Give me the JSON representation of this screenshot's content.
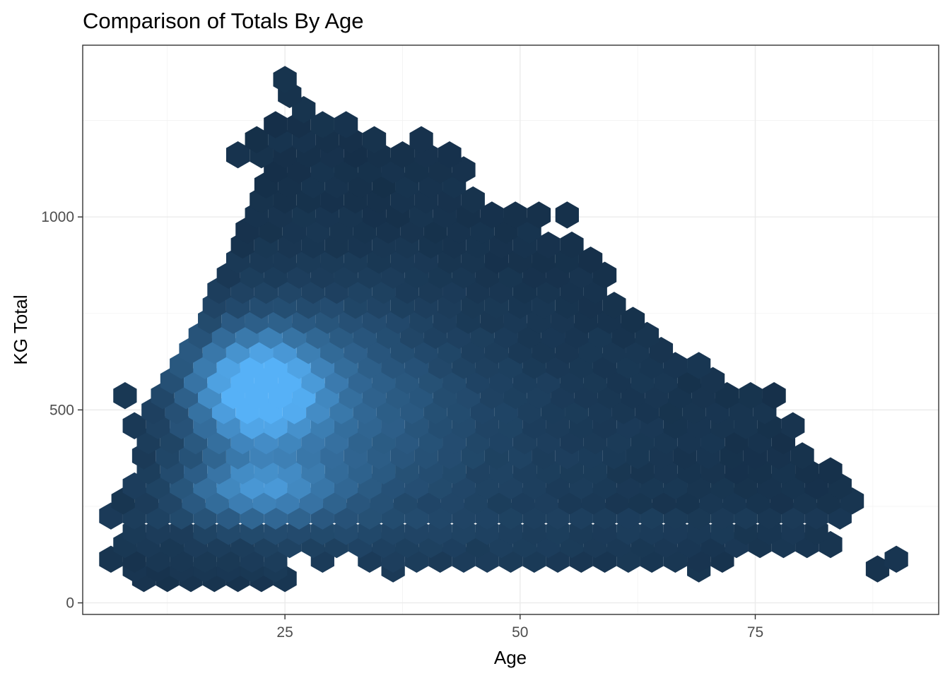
{
  "chart_data": {
    "type": "hexbin",
    "title": "Comparison of Totals By Age",
    "xlabel": "Age",
    "ylabel": "KG Total",
    "xlim": [
      3.5,
      94.5
    ],
    "ylim": [
      -30,
      1445
    ],
    "x_ticks": [
      25,
      50,
      75
    ],
    "y_ticks": [
      0,
      500,
      1000
    ],
    "grid": true,
    "legend": "none",
    "colors": {
      "low": "#132B43",
      "high": "#56B1F7"
    },
    "bin_count_scale": [
      0,
      1
    ],
    "rows": [
      {
        "y": 63,
        "x": [
          10,
          25
        ],
        "base": 0.03
      },
      {
        "y": 88,
        "x": [
          9,
          26
        ],
        "base": 0.04,
        "extra": [
          36.5,
          69,
          88
        ]
      },
      {
        "y": 113,
        "x": [
          6.5,
          72
        ],
        "base": 0.05,
        "holes": [
          27,
          31
        ],
        "extra": [
          90
        ]
      },
      {
        "y": 151,
        "x": [
          8,
          80.5
        ],
        "base": 0.06,
        "extra": [
          83
        ]
      },
      {
        "y": 185,
        "x": [
          9,
          83
        ],
        "base": 0.07
      },
      {
        "y": 225,
        "x": [
          6.5,
          84
        ],
        "base": 0.08
      },
      {
        "y": 264,
        "x": [
          7.8,
          85.5
        ],
        "base": 0.04
      },
      {
        "y": 303,
        "x": [
          9,
          84
        ],
        "base": 0.04
      },
      {
        "y": 342,
        "x": [
          10.5,
          83
        ],
        "base": 0.03
      },
      {
        "y": 381,
        "x": [
          10,
          82
        ],
        "base": 0.03
      },
      {
        "y": 420,
        "x": [
          10.5,
          80
        ],
        "base": 0.03
      },
      {
        "y": 459,
        "x": [
          9,
          80.5
        ],
        "base": 0.03
      },
      {
        "y": 498,
        "x": [
          11,
          78
        ],
        "base": 0.03
      },
      {
        "y": 537,
        "x": [
          12,
          78.5
        ],
        "base": 0.03,
        "extra": [
          8
        ]
      },
      {
        "y": 576,
        "x": [
          13,
          71
        ],
        "base": 0.03
      },
      {
        "y": 615,
        "x": [
          14,
          69
        ],
        "base": 0.03
      },
      {
        "y": 654,
        "x": [
          15,
          66
        ],
        "base": 0.03
      },
      {
        "y": 693,
        "x": [
          16,
          64
        ],
        "base": 0.03
      },
      {
        "y": 732,
        "x": [
          17,
          63
        ],
        "base": 0.03
      },
      {
        "y": 771,
        "x": [
          17.5,
          61
        ],
        "base": 0.03
      },
      {
        "y": 810,
        "x": [
          18,
          60
        ],
        "base": 0.03
      },
      {
        "y": 849,
        "x": [
          19,
          59
        ],
        "base": 0.03
      },
      {
        "y": 888,
        "x": [
          20,
          58
        ],
        "base": 0.03
      },
      {
        "y": 927,
        "x": [
          20.5,
          56
        ],
        "base": 0.03
      },
      {
        "y": 966,
        "x": [
          21,
          54
        ],
        "base": 0.03,
        "holes": [
          53
        ]
      },
      {
        "y": 1005,
        "x": [
          22,
          50
        ],
        "base": 0.03,
        "extra": [
          52,
          55
        ]
      },
      {
        "y": 1044,
        "x": [
          22.5,
          46
        ],
        "base": 0.03
      },
      {
        "y": 1083,
        "x": [
          23,
          45
        ],
        "base": 0.03
      },
      {
        "y": 1122,
        "x": [
          24,
          44
        ],
        "base": 0.03
      },
      {
        "y": 1161,
        "x": [
          20,
          44
        ],
        "base": 0.03
      },
      {
        "y": 1200,
        "x": [
          22,
          40
        ],
        "base": 0.03,
        "holes": [
          36,
          37.5
        ]
      },
      {
        "y": 1239,
        "x": [
          24,
          33
        ],
        "base": 0.03
      },
      {
        "y": 1278,
        "x": [
          27,
          29
        ],
        "base": 0.03
      },
      {
        "y": 1317,
        "x": [
          25.5,
          27.5
        ],
        "base": 0.03
      },
      {
        "y": 1356,
        "x": [
          25,
          26.5
        ],
        "base": 0.03
      }
    ],
    "density_peaks": [
      {
        "x": 22,
        "y": 560,
        "sx": 4.5,
        "sy": 95,
        "w": 0.95
      },
      {
        "x": 22,
        "y": 300,
        "sx": 5.5,
        "sy": 55,
        "w": 0.55
      },
      {
        "x": 28,
        "y": 520,
        "sx": 9,
        "sy": 190,
        "w": 0.35
      },
      {
        "x": 42,
        "y": 420,
        "sx": 15,
        "sy": 220,
        "w": 0.12
      }
    ]
  }
}
